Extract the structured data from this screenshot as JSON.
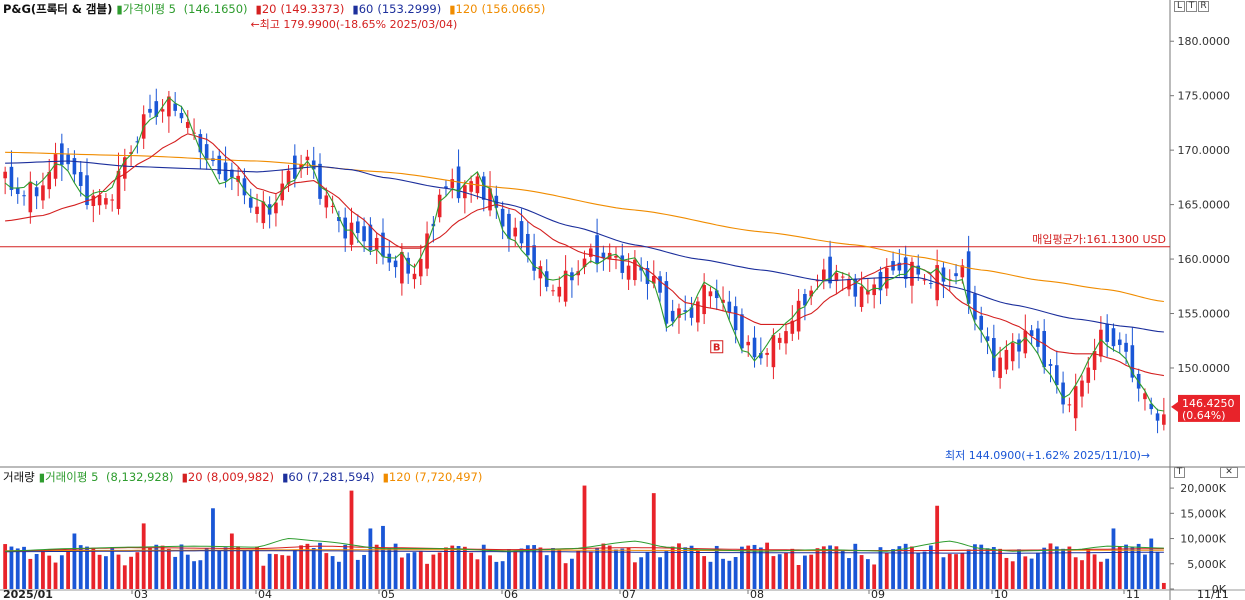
{
  "symbol": "P&G(프록터 & 갬블)",
  "price_legend": {
    "ma5_label": "가격이평 5",
    "ma5_value": "(146.1650)",
    "ma20_label": "20",
    "ma20_value": "(149.3373)",
    "ma60_label": "60",
    "ma60_value": "(153.2999)",
    "ma120_label": "120",
    "ma120_value": "(156.0665)"
  },
  "volume_legend": {
    "title": "거래량",
    "ma5_label": "거래이평 5",
    "ma5_value": "(8,132,928)",
    "ma20_label": "20",
    "ma20_value": "(8,009,982)",
    "ma60_label": "60",
    "ma60_value": "(7,281,594)",
    "ma120_label": "120",
    "ma120_value": "(7,720,497)"
  },
  "annotations": {
    "high": "←최고 179.9900(-18.65% 2025/03/04)",
    "low": "최저 144.0900(+1.62% 2025/11/10)→",
    "avg_price": "매입평균가:161.1300 USD",
    "current_price": "146.4250",
    "current_change": "(0.64%)",
    "buy_marker": "B"
  },
  "colors": {
    "up": "#e8232a",
    "down": "#1a56d6",
    "ma5": "#2e9c2e",
    "ma20": "#d42020",
    "ma60": "#1c2f9c",
    "ma120": "#f08c00",
    "avg_line": "#d42020"
  },
  "panel_controls": {
    "price": [
      "L",
      "T",
      "R"
    ],
    "volume": [
      "T",
      "✕"
    ]
  },
  "chart_data": {
    "type": "candlestick",
    "price_axis": {
      "ticks": [
        "180.0000",
        "175.0000",
        "170.0000",
        "165.0000",
        "160.0000",
        "155.0000",
        "150.0000"
      ],
      "ylim": [
        141,
        182.5
      ]
    },
    "volume_axis": {
      "ticks": [
        "20,000K",
        "15,000K",
        "10,000K",
        "5,000K",
        "0K"
      ],
      "ylim": [
        0,
        22000
      ]
    },
    "x_axis": {
      "labels": [
        "2025/01",
        "03",
        "04",
        "05",
        "06",
        "07",
        "08",
        "09",
        "10",
        "11",
        "11/11"
      ]
    },
    "avg_purchase_price": 161.13,
    "ma_waypoints": {
      "ma5": [
        [
          0,
          166.5
        ],
        [
          5,
          167.2
        ],
        [
          9,
          168.6
        ],
        [
          12,
          165.8
        ],
        [
          16,
          166.5
        ],
        [
          20,
          169.5
        ],
        [
          23,
          172.5
        ],
        [
          26,
          174.8
        ],
        [
          28,
          174.5
        ],
        [
          31,
          170
        ],
        [
          34,
          166.5
        ],
        [
          36,
          167.5
        ],
        [
          39,
          166.2
        ],
        [
          42,
          164.8
        ],
        [
          45,
          166.5
        ],
        [
          48,
          168.8
        ],
        [
          51,
          166.5
        ],
        [
          54,
          163
        ],
        [
          57,
          160.8
        ],
        [
          60,
          160.2
        ],
        [
          63,
          160.6
        ],
        [
          65,
          159.5
        ],
        [
          67,
          161
        ],
        [
          69,
          165
        ],
        [
          72,
          166.5
        ],
        [
          75,
          168.2
        ],
        [
          77,
          166.5
        ],
        [
          79,
          162.5
        ],
        [
          82,
          160.5
        ],
        [
          86,
          158.5
        ],
        [
          90,
          158.5
        ],
        [
          94,
          159.5
        ],
        [
          97,
          160.5
        ],
        [
          100,
          160.2
        ],
        [
          103,
          157.5
        ],
        [
          105,
          153.5
        ],
        [
          108,
          155
        ],
        [
          111,
          158
        ],
        [
          113,
          157.5
        ],
        [
          115,
          154
        ],
        [
          117,
          151.5
        ],
        [
          119,
          150.5
        ],
        [
          121,
          152.5
        ],
        [
          124,
          154.5
        ],
        [
          126,
          155
        ],
        [
          129,
          157
        ],
        [
          132,
          159
        ],
        [
          135,
          158.5
        ],
        [
          137,
          157
        ],
        [
          140,
          157.5
        ],
        [
          143,
          158.8
        ],
        [
          145,
          159.5
        ],
        [
          148,
          159
        ],
        [
          150,
          158
        ],
        [
          152,
          157.5
        ],
        [
          154,
          154
        ],
        [
          157,
          151.5
        ],
        [
          160,
          152.5
        ],
        [
          162,
          152.5
        ],
        [
          164,
          151
        ],
        [
          166,
          149
        ],
        [
          168,
          147.5
        ],
        [
          170,
          148.5
        ],
        [
          172,
          151
        ],
        [
          174,
          152.2
        ],
        [
          176,
          151.5
        ],
        [
          178,
          150.5
        ],
        [
          180,
          149
        ],
        [
          182,
          147
        ],
        [
          184,
          146.2
        ]
      ],
      "ma20": [
        [
          0,
          163.5
        ],
        [
          6,
          164
        ],
        [
          10,
          164.8
        ],
        [
          14,
          165.5
        ],
        [
          18,
          167.5
        ],
        [
          22,
          169
        ],
        [
          26,
          170.5
        ],
        [
          29,
          171.5
        ],
        [
          32,
          171
        ],
        [
          36,
          169
        ],
        [
          40,
          166.5
        ],
        [
          43,
          166
        ],
        [
          46,
          167
        ],
        [
          49,
          167.2
        ],
        [
          52,
          166
        ],
        [
          56,
          164
        ],
        [
          60,
          162
        ],
        [
          63,
          161
        ],
        [
          66,
          161
        ],
        [
          69,
          162
        ],
        [
          72,
          163.5
        ],
        [
          75,
          164.5
        ],
        [
          78,
          165
        ],
        [
          81,
          164.5
        ],
        [
          84,
          163
        ],
        [
          88,
          161.5
        ],
        [
          92,
          160.5
        ],
        [
          96,
          160
        ],
        [
          99,
          159.8
        ],
        [
          102,
          159
        ],
        [
          105,
          157.5
        ],
        [
          108,
          156
        ],
        [
          112,
          155.5
        ],
        [
          116,
          155
        ],
        [
          120,
          154
        ],
        [
          124,
          154
        ],
        [
          128,
          155
        ],
        [
          131,
          156.5
        ],
        [
          134,
          157.5
        ],
        [
          137,
          158.5
        ],
        [
          140,
          159.3
        ],
        [
          143,
          159.6
        ],
        [
          146,
          159
        ],
        [
          149,
          157.5
        ],
        [
          152,
          156
        ],
        [
          155,
          155
        ],
        [
          158,
          154.5
        ],
        [
          161,
          153.8
        ],
        [
          164,
          152.5
        ],
        [
          167,
          151.5
        ],
        [
          170,
          151.3
        ],
        [
          173,
          151.3
        ],
        [
          176,
          150.8
        ],
        [
          179,
          150
        ],
        [
          182,
          149.5
        ],
        [
          184,
          149.3
        ]
      ],
      "ma60": [
        [
          0,
          168.8
        ],
        [
          10,
          169
        ],
        [
          20,
          168.5
        ],
        [
          30,
          168.3
        ],
        [
          40,
          168
        ],
        [
          50,
          168.5
        ],
        [
          55,
          168.2
        ],
        [
          60,
          167.5
        ],
        [
          70,
          166.5
        ],
        [
          80,
          165
        ],
        [
          90,
          163
        ],
        [
          100,
          161.3
        ],
        [
          110,
          160
        ],
        [
          120,
          159
        ],
        [
          130,
          158
        ],
        [
          140,
          158.3
        ],
        [
          145,
          158.3
        ],
        [
          150,
          157.5
        ],
        [
          160,
          155.8
        ],
        [
          170,
          154.5
        ],
        [
          178,
          153.8
        ],
        [
          184,
          153.3
        ]
      ],
      "ma120": [
        [
          0,
          169.8
        ],
        [
          20,
          169.5
        ],
        [
          40,
          169
        ],
        [
          60,
          168
        ],
        [
          80,
          166.5
        ],
        [
          100,
          164.5
        ],
        [
          120,
          162.5
        ],
        [
          135,
          161.3
        ],
        [
          145,
          160.2
        ],
        [
          155,
          159
        ],
        [
          165,
          158
        ],
        [
          175,
          157.2
        ],
        [
          184,
          156.1
        ]
      ]
    },
    "volume_ma_waypoints": {
      "ma5": [
        [
          0,
          7.5
        ],
        [
          10,
          8
        ],
        [
          20,
          8.3
        ],
        [
          30,
          8.5
        ],
        [
          40,
          8.3
        ],
        [
          45,
          10
        ],
        [
          50,
          9.5
        ],
        [
          60,
          8
        ],
        [
          70,
          8
        ],
        [
          80,
          7.5
        ],
        [
          90,
          8
        ],
        [
          100,
          9.5
        ],
        [
          105,
          8.3
        ],
        [
          110,
          7.8
        ],
        [
          120,
          7.5
        ],
        [
          130,
          7.8
        ],
        [
          140,
          7.5
        ],
        [
          150,
          9.5
        ],
        [
          155,
          8
        ],
        [
          160,
          7.5
        ],
        [
          170,
          7.8
        ],
        [
          175,
          8.5
        ],
        [
          184,
          8.1
        ]
      ],
      "ma20": [
        [
          0,
          7.5
        ],
        [
          20,
          8.2
        ],
        [
          40,
          8
        ],
        [
          50,
          8.5
        ],
        [
          60,
          8.2
        ],
        [
          80,
          7.8
        ],
        [
          100,
          8.2
        ],
        [
          120,
          7.8
        ],
        [
          140,
          7.6
        ],
        [
          160,
          7.7
        ],
        [
          184,
          8
        ]
      ],
      "ma60": [
        [
          0,
          7.4
        ],
        [
          40,
          7.6
        ],
        [
          80,
          7.4
        ],
        [
          120,
          7.2
        ],
        [
          160,
          7.1
        ],
        [
          184,
          7.3
        ]
      ],
      "ma120": [
        [
          0,
          7.6
        ],
        [
          60,
          7.8
        ],
        [
          120,
          7.6
        ],
        [
          184,
          7.7
        ]
      ]
    },
    "volume_spikes": [
      [
        11,
        11
      ],
      [
        22,
        13
      ],
      [
        33,
        16
      ],
      [
        36,
        11
      ],
      [
        55,
        19.5
      ],
      [
        58,
        12
      ],
      [
        60,
        12.5
      ],
      [
        92,
        20.5
      ],
      [
        103,
        19
      ],
      [
        148,
        16.5
      ],
      [
        176,
        12
      ],
      [
        182,
        10
      ]
    ],
    "price_summary": {
      "high": 179.99,
      "high_date": "2025/03/04",
      "low": 144.09,
      "low_date": "2025/11/10",
      "last": 146.425,
      "change_pct": 0.64
    }
  }
}
